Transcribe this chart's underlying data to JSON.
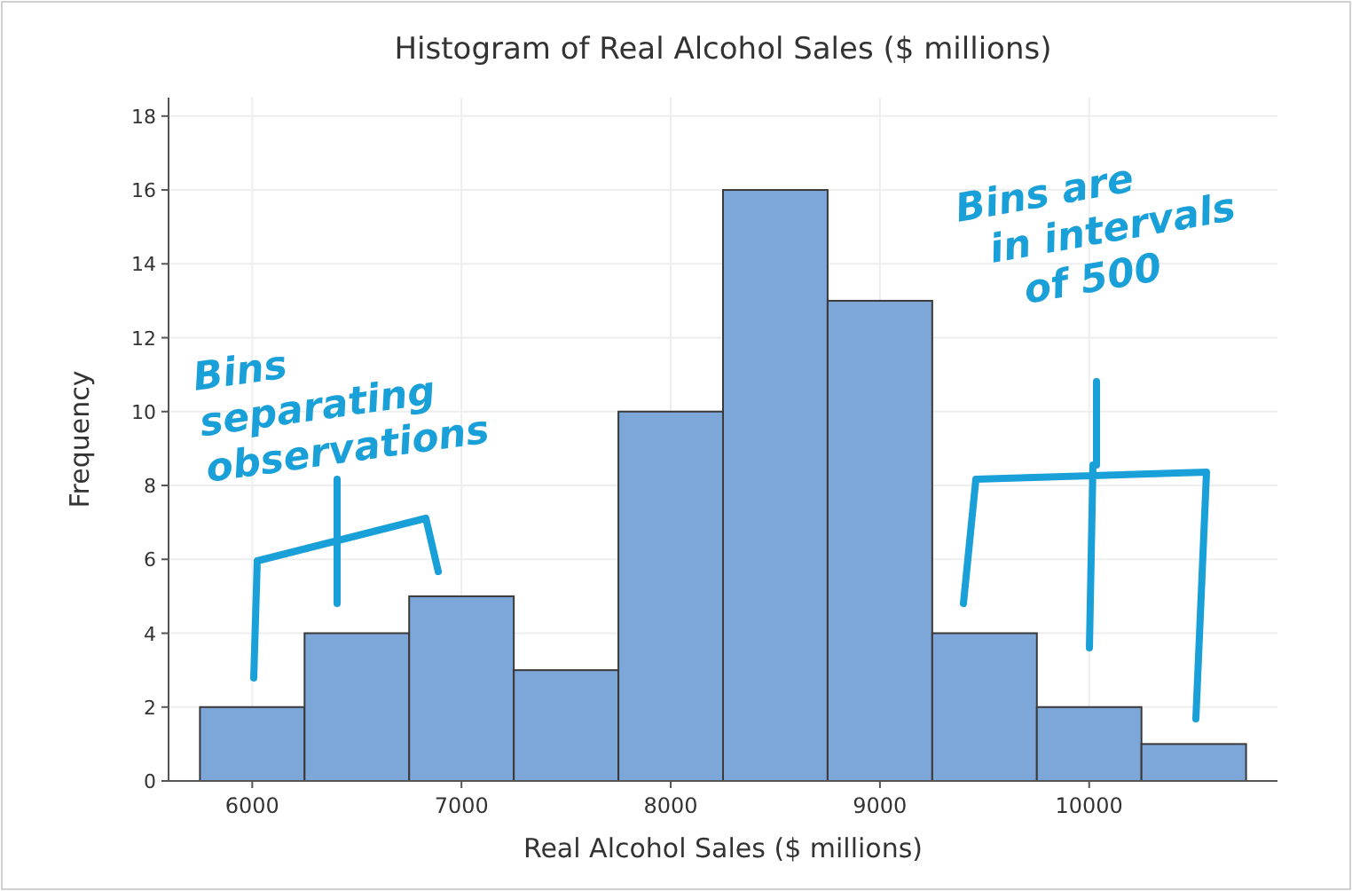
{
  "chart_data": {
    "type": "histogram",
    "title": "Histogram of Real Alcohol Sales ($ millions)",
    "xlabel": "Real Alcohol Sales ($ millions)",
    "ylabel": "Frequency",
    "bins": [
      5750,
      6250,
      6750,
      7250,
      7750,
      8250,
      8750,
      9250,
      9750,
      10250,
      10750
    ],
    "values": [
      2,
      4,
      5,
      3,
      10,
      16,
      13,
      4,
      2,
      1
    ],
    "color": "#7da6d9",
    "xlim": [
      5600,
      10900
    ],
    "xticks": [
      6000,
      7000,
      8000,
      9000,
      10000
    ],
    "ylim": [
      0,
      18.5
    ],
    "yticks": [
      0,
      2,
      4,
      6,
      8,
      10,
      12,
      14,
      16,
      18
    ],
    "grid": true,
    "annotations": [
      "Bins separating observations",
      "Bins are in intervals of 500"
    ]
  }
}
